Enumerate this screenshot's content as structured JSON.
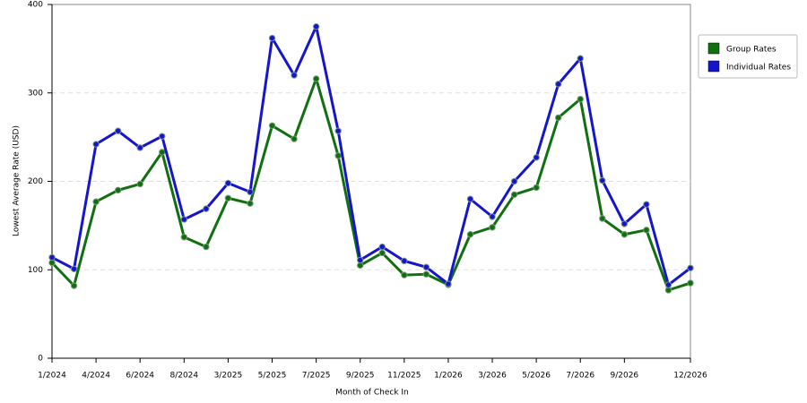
{
  "chart_data": {
    "type": "line",
    "x_label": "Month of Check In",
    "y_label": "Lowest Average Rate (USD)",
    "categories": [
      "1/2024",
      null,
      "4/2024",
      null,
      "6/2024",
      null,
      "8/2024",
      null,
      "3/2025",
      null,
      "5/2025",
      null,
      "7/2025",
      null,
      "9/2025",
      null,
      "11/2025",
      null,
      "1/2026",
      null,
      "3/2026",
      null,
      "5/2026",
      null,
      "7/2026",
      null,
      "9/2026",
      null,
      null,
      "12/2026"
    ],
    "series": [
      {
        "name": "Group Rates",
        "color": "#107010",
        "values": [
          108,
          82,
          177,
          190,
          197,
          233,
          137,
          126,
          181,
          175,
          263,
          248,
          316,
          229,
          105,
          119,
          94,
          95,
          83,
          140,
          148,
          185,
          193,
          272,
          293,
          158,
          140,
          145,
          77,
          85
        ]
      },
      {
        "name": "Individual Rates",
        "color": "#1515cc",
        "values": [
          114,
          101,
          242,
          257,
          238,
          251,
          157,
          169,
          198,
          188,
          362,
          320,
          375,
          257,
          111,
          126,
          110,
          103,
          84,
          180,
          160,
          200,
          227,
          310,
          339,
          201,
          152,
          174,
          83,
          102
        ]
      }
    ],
    "ylim": [
      0,
      400
    ],
    "yticks": [
      0,
      100,
      200,
      300,
      400
    ],
    "grid": true,
    "legend": "right"
  }
}
